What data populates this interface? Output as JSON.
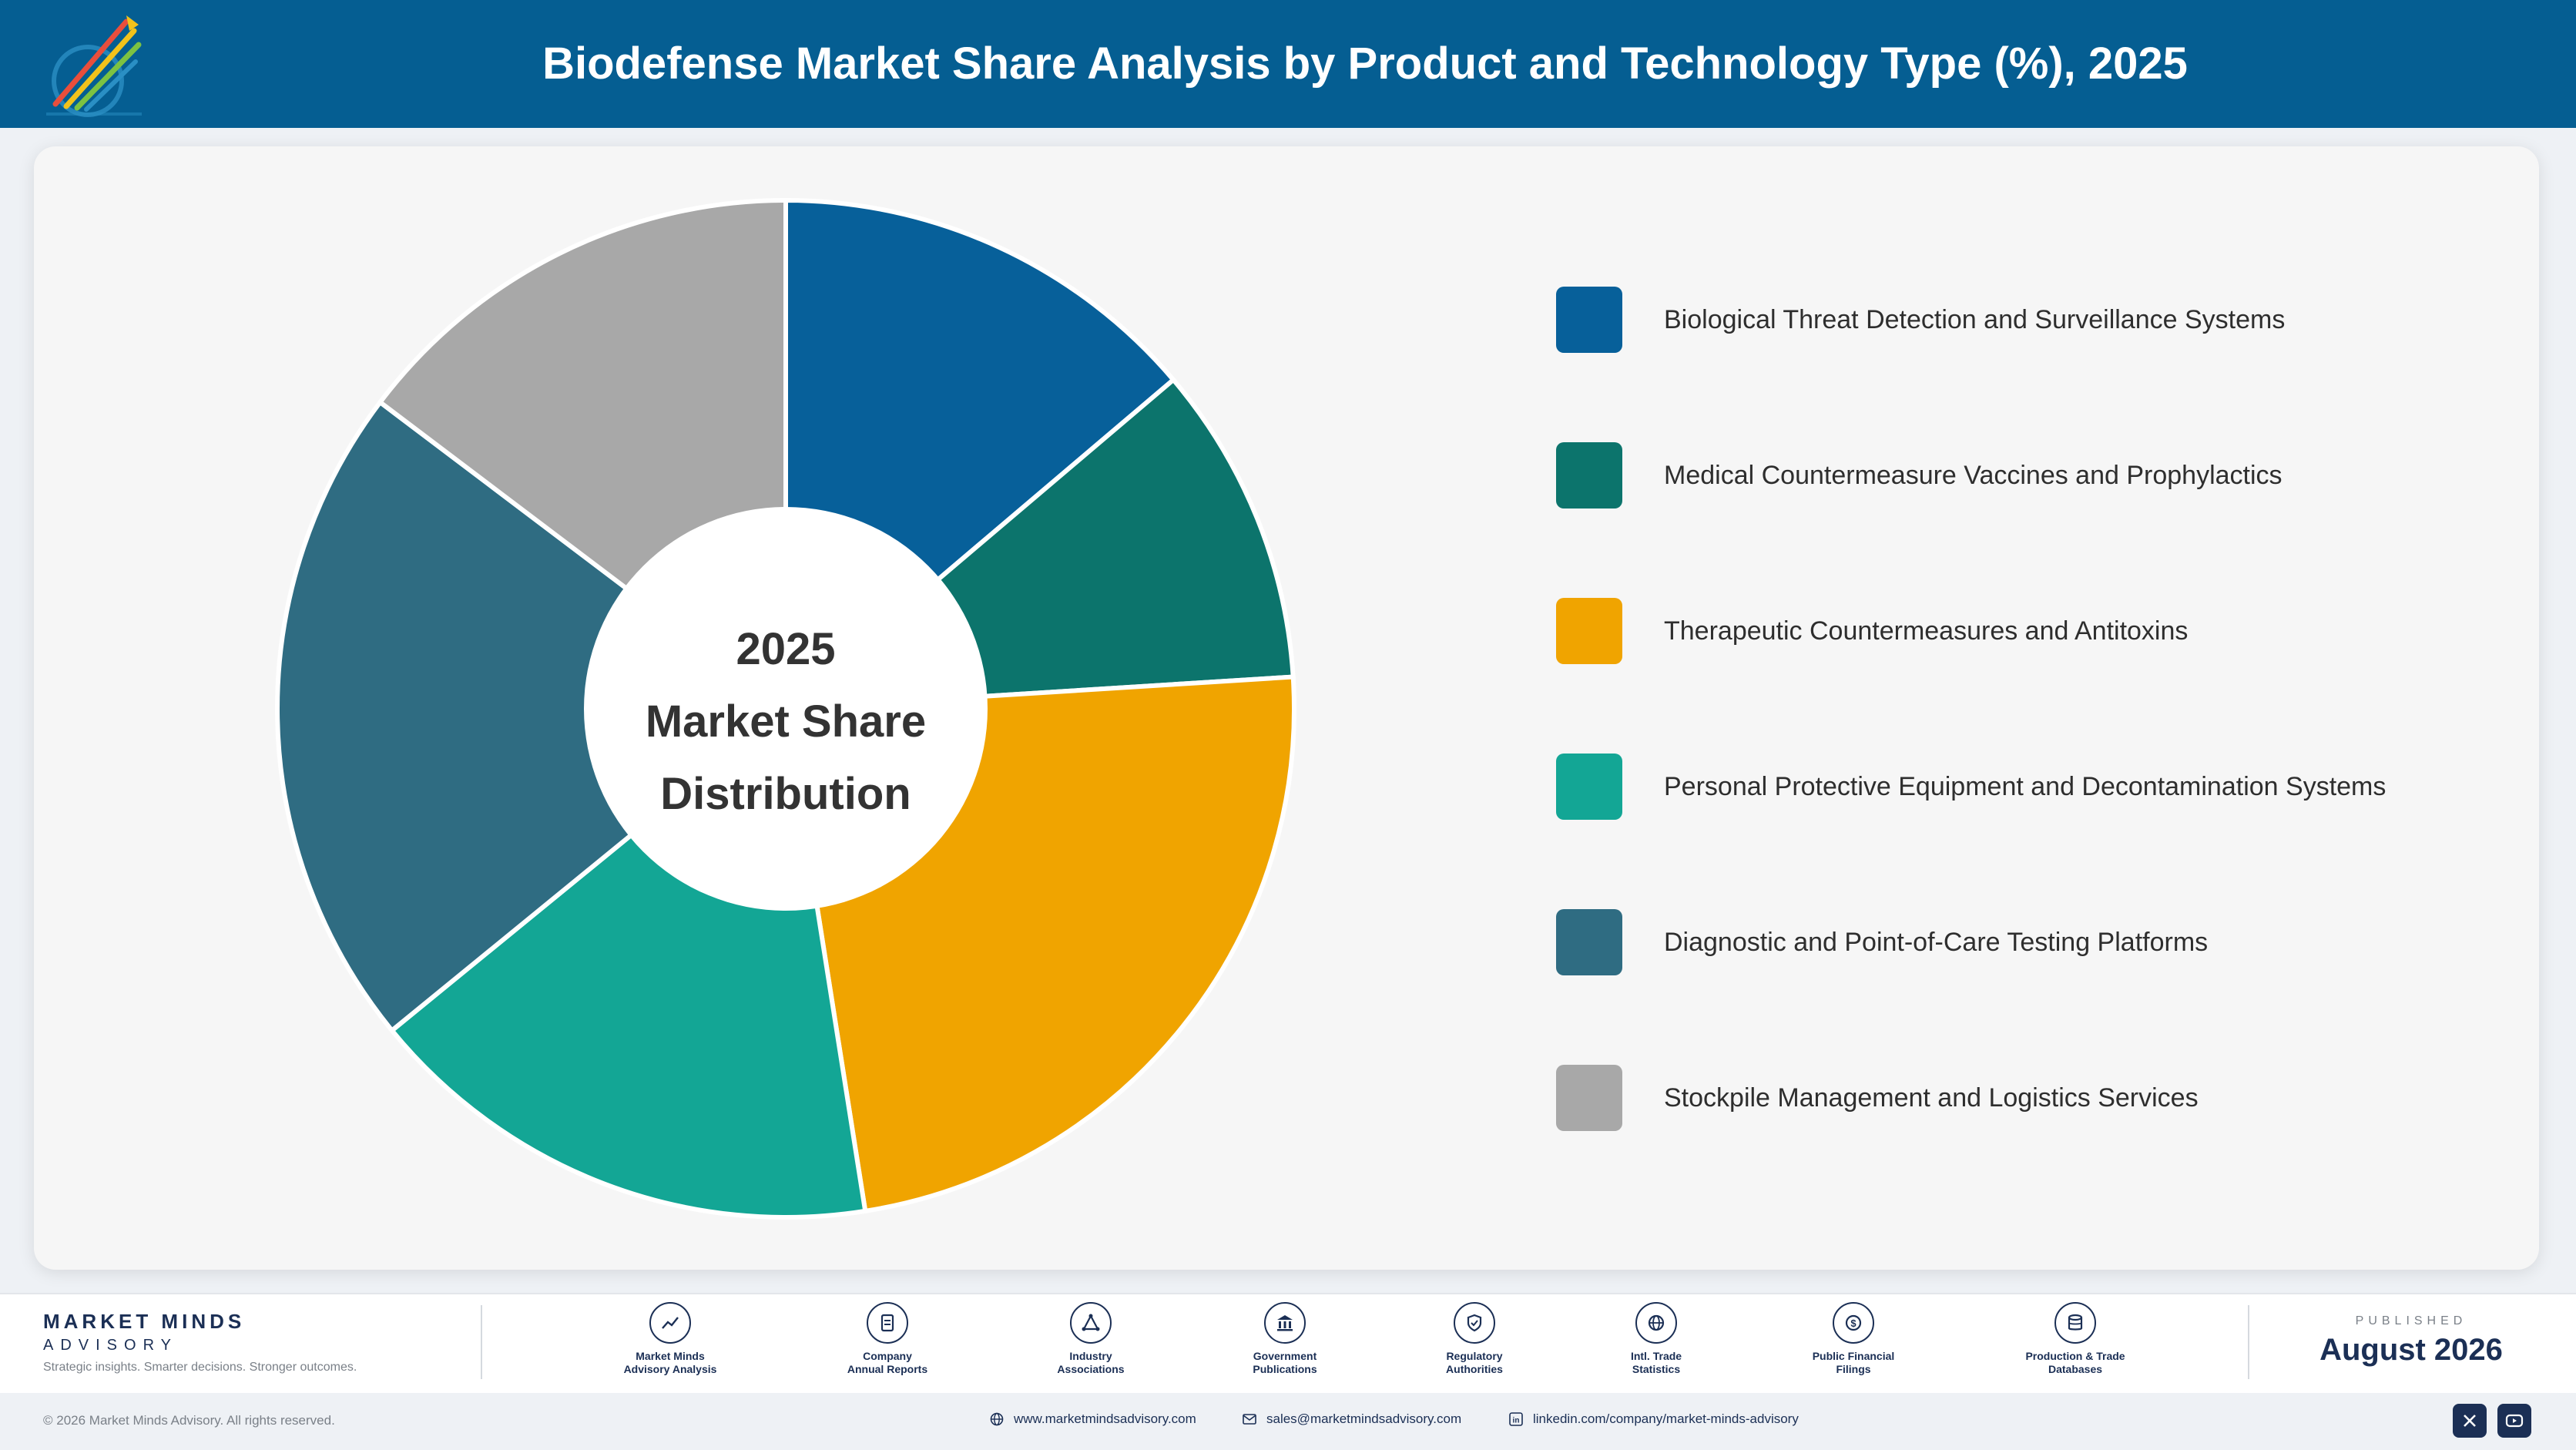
{
  "header": {
    "title": "Biodefense Market Share Analysis by Product and Technology Type (%), 2025"
  },
  "colors": {
    "header_bg": "#055e92",
    "brand_navy": "#1b2f55"
  },
  "chart_data": {
    "type": "pie",
    "variant": "donut",
    "title": "Biodefense Market Share Analysis by Product and Technology Type (%), 2025",
    "center_label": [
      "2025",
      "Market Share",
      "Distribution"
    ],
    "legend_position": "right",
    "categories": [
      "Biological Threat Detection and Surveillance Systems",
      "Medical Countermeasure Vaccines and Prophylactics",
      "Therapeutic Countermeasures and Antitoxins",
      "Personal Protective Equipment and Decontamination Systems",
      "Diagnostic and Point-of-Care Testing Platforms",
      "Stockpile Management and Logistics Services"
    ],
    "values": [
      13.8,
      10.2,
      23.5,
      16.6,
      21.2,
      14.7
    ],
    "colors": [
      "#07609a",
      "#0c746c",
      "#f0a400",
      "#13a695",
      "#2f6c82",
      "#a8a8a8"
    ]
  },
  "footer": {
    "brand_name": "MARKET MINDS",
    "brand_sub": "ADVISORY",
    "tagline": "Strategic insights. Smarter decisions. Stronger outcomes.",
    "sources": [
      {
        "line1": "Market Minds",
        "line2": "Advisory Analysis",
        "icon": "trend-icon"
      },
      {
        "line1": "Company",
        "line2": "Annual Reports",
        "icon": "document-icon"
      },
      {
        "line1": "Industry",
        "line2": "Associations",
        "icon": "network-icon"
      },
      {
        "line1": "Government",
        "line2": "Publications",
        "icon": "building-icon"
      },
      {
        "line1": "Regulatory",
        "line2": "Authorities",
        "icon": "shield-icon"
      },
      {
        "line1": "Intl. Trade",
        "line2": "Statistics",
        "icon": "globe-icon"
      },
      {
        "line1": "Public Financial",
        "line2": "Filings",
        "icon": "dollar-icon"
      },
      {
        "line1": "Production & Trade",
        "line2": "Databases",
        "icon": "database-icon"
      }
    ],
    "published_label": "PUBLISHED",
    "published_date": "August 2026",
    "copyright": "© 2026 Market Minds Advisory. All rights reserved.",
    "website": "www.marketmindsadvisory.com",
    "email": "sales@marketmindsadvisory.com",
    "linkedin": "linkedin.com/company/market-minds-advisory"
  }
}
